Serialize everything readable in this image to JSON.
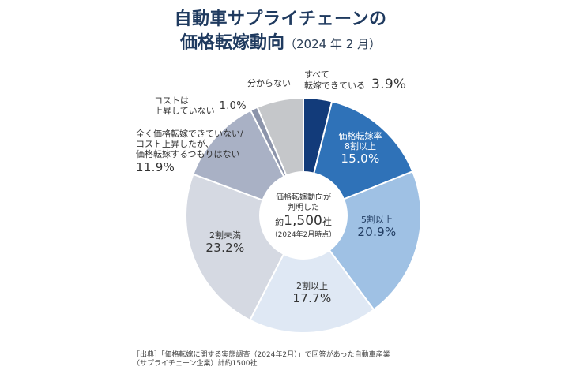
{
  "header": {
    "title_line1": "自動車サプライチェーンの",
    "title_line2": "価格転嫁動向",
    "title_sub": "（2024 年 2 月）"
  },
  "center": {
    "line1": "価格転嫁動向が",
    "line2": "判明した",
    "prefix": "約",
    "count": "1,500",
    "suffix": "社",
    "note": "（2024年2月時点）"
  },
  "source": {
    "line1": "［出典］「価格転嫁に関する実態調査（2024年2月）」で回答があった自動車産業",
    "line2": "（サプライチェーン企業）計約1500社"
  },
  "chart_data": {
    "type": "pie",
    "variant": "donut",
    "start": "top",
    "direction": "clockwise",
    "title": "自動車サプライチェーンの価格転嫁動向（2024 年 2 月）",
    "slices": [
      {
        "name": "すべて転嫁できている",
        "label_lines": [
          "すべて",
          "転嫁できている"
        ],
        "value": 3.9,
        "value_label": "3.9%",
        "color": "#123b7a",
        "text_color": "#333333"
      },
      {
        "name": "価格転嫁率8割以上",
        "label_lines": [
          "価格転嫁率",
          "8割以上"
        ],
        "value": 15.0,
        "value_label": "15.0%",
        "color": "#2f72b8",
        "text_color": "#ffffff"
      },
      {
        "name": "5割以上",
        "label_lines": [
          "5割以上"
        ],
        "value": 20.9,
        "value_label": "20.9%",
        "color": "#9fc1e4",
        "text_color": "#1f3a5f"
      },
      {
        "name": "2割以上",
        "label_lines": [
          "2割以上"
        ],
        "value": 17.7,
        "value_label": "17.7%",
        "color": "#dfe8f4",
        "text_color": "#333333"
      },
      {
        "name": "2割未満",
        "label_lines": [
          "2割未満"
        ],
        "value": 23.2,
        "value_label": "23.2%",
        "color": "#d5d9e2",
        "text_color": "#333333"
      },
      {
        "name": "全く価格転嫁できていない/コスト上昇したが、価格転嫁するつもりはない",
        "label_lines": [
          "全く価格転嫁できていない/",
          "コスト上昇したが、",
          "価格転嫁するつもりはない"
        ],
        "value": 11.9,
        "value_label": "11.9%",
        "color": "#a9b1c5",
        "text_color": "#333333"
      },
      {
        "name": "コストは上昇していない",
        "label_lines": [
          "コストは",
          "上昇していない"
        ],
        "value": 1.0,
        "value_label": "1.0%",
        "color": "#8c94aa",
        "text_color": "#333333"
      },
      {
        "name": "分からない",
        "label_lines": [
          "分からない"
        ],
        "value": 6.4,
        "value_label": "",
        "color": "#c5c7ca",
        "text_color": "#333333"
      }
    ]
  }
}
